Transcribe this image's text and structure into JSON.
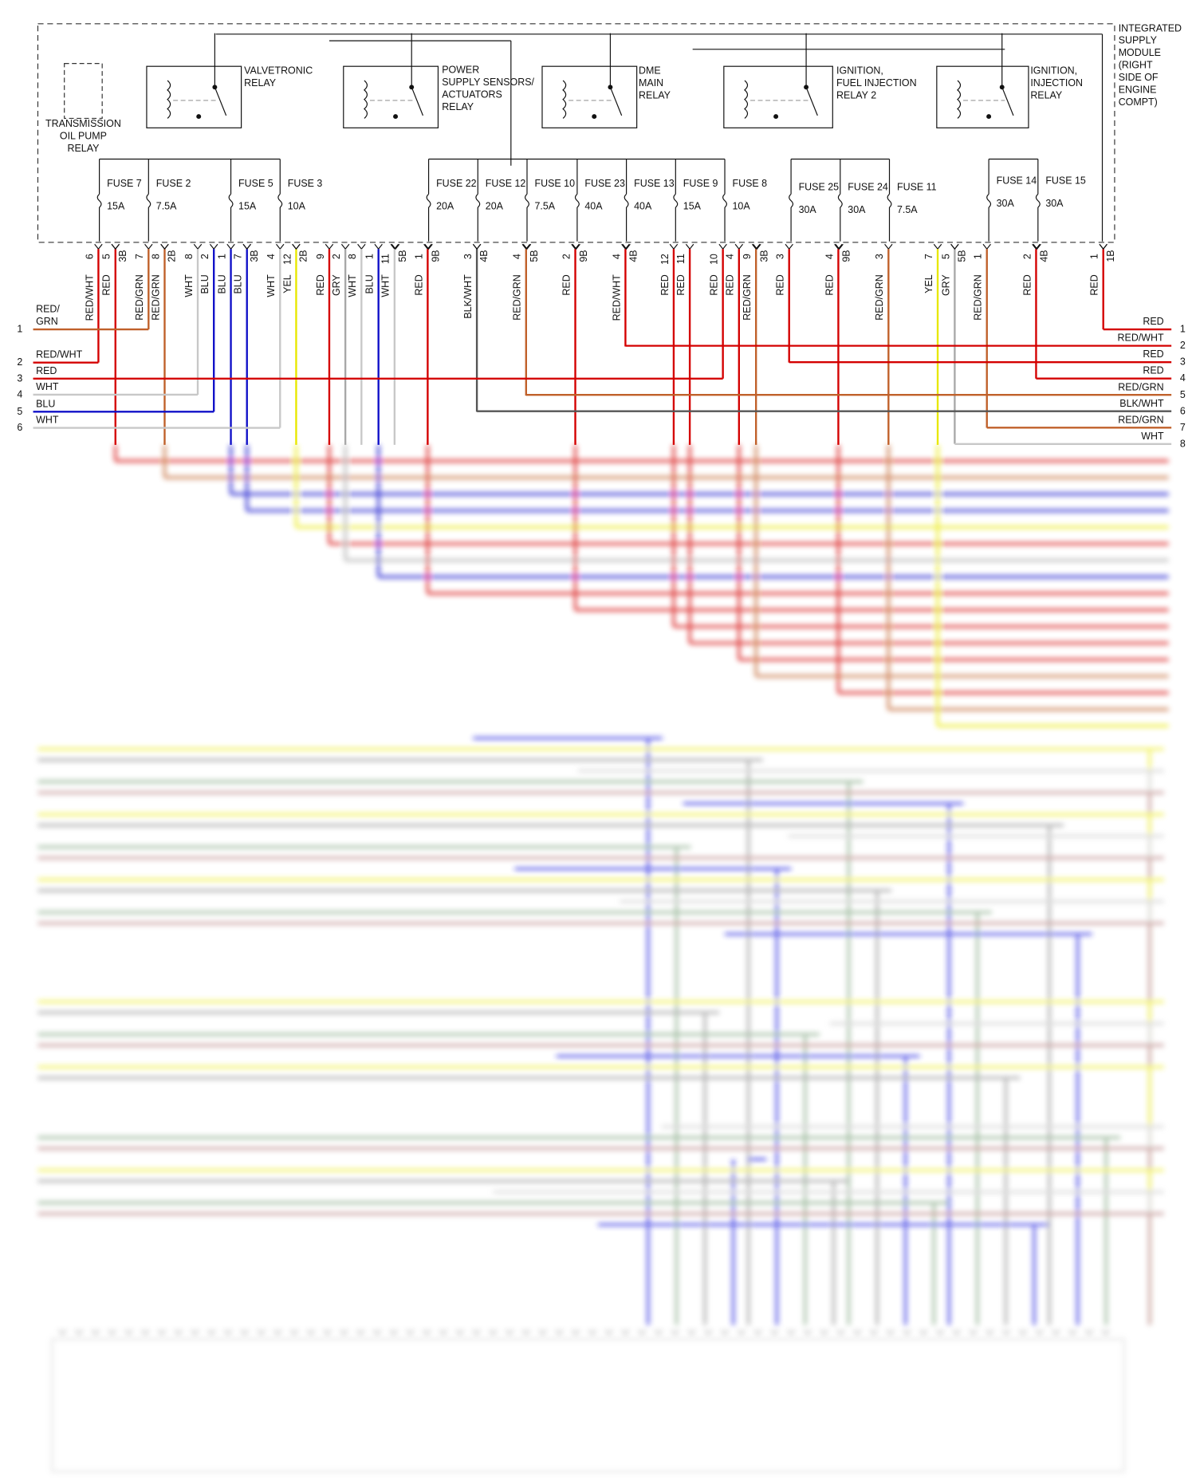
{
  "module": {
    "label": [
      "INTEGRATED",
      "SUPPLY",
      "MODULE",
      "(RIGHT",
      "SIDE OF",
      "ENGINE",
      "COMPT)"
    ]
  },
  "relays": [
    {
      "label": [
        "TRANSMISSION",
        "OIL PUMP",
        "RELAY"
      ]
    },
    {
      "label": [
        "VALVETRONIC",
        "RELAY"
      ]
    },
    {
      "label": [
        "POWER",
        "SUPPLY SENSORS/",
        "ACTUATORS",
        "RELAY"
      ]
    },
    {
      "label": [
        "DME",
        "MAIN",
        "RELAY"
      ]
    },
    {
      "label": [
        "IGNITION,",
        "FUEL INJECTION",
        "RELAY 2"
      ]
    },
    {
      "label": [
        "IGNITION,",
        "INJECTION",
        "RELAY"
      ]
    }
  ],
  "fuses": [
    {
      "name": "FUSE 7",
      "rating": "15A"
    },
    {
      "name": "FUSE 2",
      "rating": "7.5A"
    },
    {
      "name": "FUSE 5",
      "rating": "15A"
    },
    {
      "name": "FUSE 3",
      "rating": "10A"
    },
    {
      "name": "FUSE 22",
      "rating": "20A"
    },
    {
      "name": "FUSE 12",
      "rating": "20A"
    },
    {
      "name": "FUSE 10",
      "rating": "7.5A"
    },
    {
      "name": "FUSE 23",
      "rating": "40A"
    },
    {
      "name": "FUSE 13",
      "rating": "40A"
    },
    {
      "name": "FUSE 9",
      "rating": "15A"
    },
    {
      "name": "FUSE 8",
      "rating": "10A"
    },
    {
      "name": "FUSE 25",
      "rating": "30A"
    },
    {
      "name": "FUSE 24",
      "rating": "30A"
    },
    {
      "name": "FUSE 11",
      "rating": "7.5A"
    },
    {
      "name": "FUSE 14",
      "rating": "30A"
    },
    {
      "name": "FUSE 15",
      "rating": "30A"
    }
  ],
  "pins": [
    {
      "pin": "6",
      "wire": "RED/WHT"
    },
    {
      "pin": "5",
      "wire": "RED"
    },
    {
      "pin": "7",
      "wire": "RED/GRN"
    },
    {
      "pin": "8",
      "wire": "RED/GRN"
    },
    {
      "pin": "8",
      "wire": "WHT"
    },
    {
      "pin": "2",
      "wire": "BLU"
    },
    {
      "pin": "1",
      "wire": "BLU"
    },
    {
      "pin": "7",
      "wire": "BLU"
    },
    {
      "pin": "4",
      "wire": "WHT"
    },
    {
      "pin": "12",
      "wire": "YEL"
    },
    {
      "pin": "9",
      "wire": "RED"
    },
    {
      "pin": "2",
      "wire": "GRY"
    },
    {
      "pin": "8",
      "wire": "WHT"
    },
    {
      "pin": "1",
      "wire": "BLU"
    },
    {
      "pin": "11",
      "wire": "WHT"
    },
    {
      "pin": "1",
      "wire": "RED"
    },
    {
      "pin": "3",
      "wire": "BLK/WHT"
    },
    {
      "pin": "4",
      "wire": "RED/GRN"
    },
    {
      "pin": "2",
      "wire": "RED"
    },
    {
      "pin": "4",
      "wire": "RED/WHT"
    },
    {
      "pin": "12",
      "wire": "RED"
    },
    {
      "pin": "11",
      "wire": "RED"
    },
    {
      "pin": "10",
      "wire": "RED"
    },
    {
      "pin": "4",
      "wire": "RED"
    },
    {
      "pin": "9",
      "wire": "RED/GRN"
    },
    {
      "pin": "3",
      "wire": "RED"
    },
    {
      "pin": "4",
      "wire": "RED"
    },
    {
      "pin": "3",
      "wire": "RED/GRN"
    },
    {
      "pin": "7",
      "wire": "YEL"
    },
    {
      "pin": "5",
      "wire": "GRY"
    },
    {
      "pin": "1",
      "wire": "RED/GRN"
    },
    {
      "pin": "2",
      "wire": "RED"
    },
    {
      "pin": "1",
      "wire": "RED"
    }
  ],
  "connectors": [
    "3B",
    "2B",
    "3B",
    "2B",
    "5B",
    "9B",
    "4B",
    "5B",
    "9B",
    "4B",
    "3B",
    "9B",
    "5B",
    "4B",
    "1B"
  ],
  "left_wires": [
    {
      "number": "1",
      "label": [
        "RED/",
        "GRN"
      ]
    },
    {
      "number": "2",
      "label": [
        "RED/WHT"
      ]
    },
    {
      "number": "3",
      "label": [
        "RED"
      ]
    },
    {
      "number": "4",
      "label": [
        "WHT"
      ]
    },
    {
      "number": "5",
      "label": [
        "BLU"
      ]
    },
    {
      "number": "6",
      "label": [
        "WHT"
      ]
    }
  ],
  "right_wires": [
    {
      "number": "1",
      "label": "RED"
    },
    {
      "number": "2",
      "label": "RED/WHT"
    },
    {
      "number": "3",
      "label": "RED"
    },
    {
      "number": "4",
      "label": "RED"
    },
    {
      "number": "5",
      "label": "RED/GRN"
    },
    {
      "number": "6",
      "label": "BLK/WHT"
    },
    {
      "number": "7",
      "label": "RED/GRN"
    },
    {
      "number": "8",
      "label": "WHT"
    }
  ]
}
